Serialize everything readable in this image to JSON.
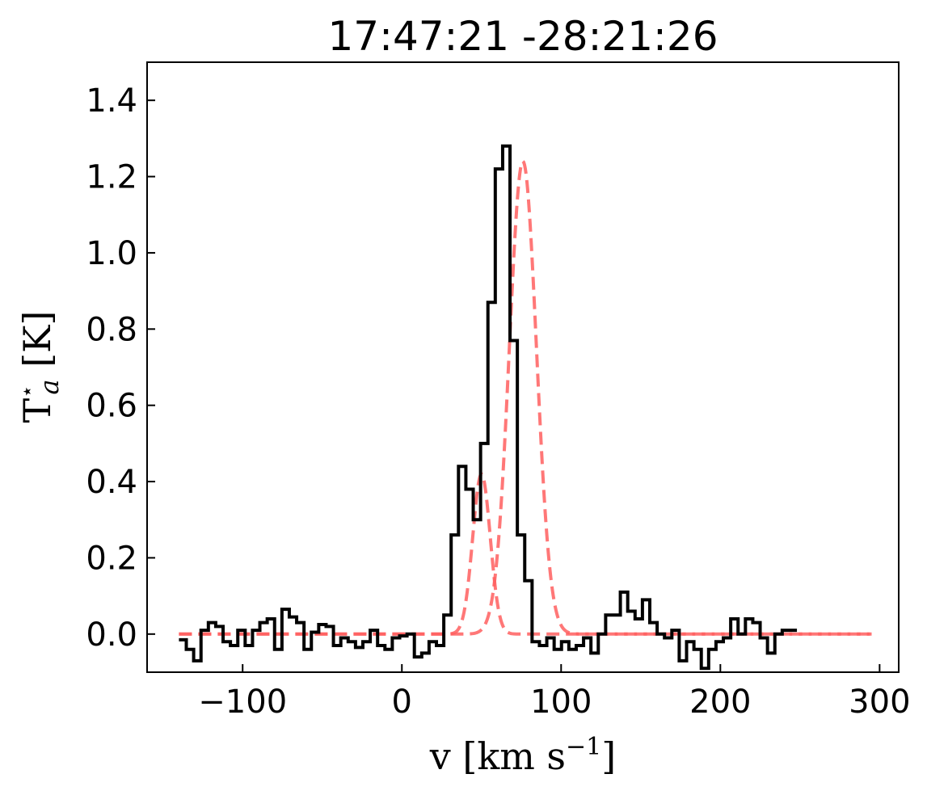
{
  "chart_data": {
    "type": "line",
    "title": "17:47:21 -28:21:26",
    "xlabel": {
      "main": "v [km s",
      "sup": "−1",
      "close": "]"
    },
    "ylabel": {
      "main": "T",
      "sup": "⋆",
      "sub": "a",
      "unit": " [K]"
    },
    "xlim": [
      -160,
      312
    ],
    "ylim": [
      -0.1,
      1.5
    ],
    "xticks": [
      -100,
      0,
      100,
      200,
      300
    ],
    "xtick_labels": [
      "−100",
      "0",
      "100",
      "200",
      "300"
    ],
    "yticks": [
      0.0,
      0.2,
      0.4,
      0.6,
      0.8,
      1.0,
      1.2,
      1.4
    ],
    "ytick_labels": [
      "0.0",
      "0.2",
      "0.4",
      "0.6",
      "0.8",
      "1.0",
      "1.2",
      "1.4"
    ],
    "grid": false,
    "series": [
      {
        "style": "step",
        "color": "#000000",
        "x_start": -140,
        "x_step": 4.62,
        "values": [
          -0.015,
          -0.04,
          -0.07,
          0.01,
          0.03,
          0.02,
          -0.02,
          -0.03,
          0.01,
          -0.03,
          0.01,
          0.03,
          0.04,
          -0.04,
          0.065,
          0.045,
          0.03,
          -0.04,
          0.005,
          0.025,
          0.02,
          -0.03,
          -0.01,
          -0.02,
          -0.035,
          -0.02,
          0.01,
          -0.03,
          -0.04,
          -0.01,
          -0.005,
          0.0,
          -0.06,
          -0.05,
          -0.02,
          -0.03,
          0.05,
          0.26,
          0.44,
          0.38,
          0.3,
          0.5,
          0.87,
          1.22,
          1.28,
          0.77,
          0.26,
          0.14,
          -0.02,
          -0.03,
          -0.01,
          -0.04,
          -0.02,
          -0.04,
          -0.03,
          -0.01,
          -0.05,
          0.0,
          0.05,
          0.05,
          0.11,
          0.06,
          0.04,
          0.09,
          0.03,
          0.0,
          -0.01,
          0.01,
          -0.07,
          -0.02,
          -0.04,
          -0.09,
          -0.04,
          -0.02,
          -0.01,
          0.04,
          0.0,
          0.04,
          0.03,
          -0.01,
          -0.05,
          0.0,
          0.01,
          0.01
        ]
      },
      {
        "style": "gaussian",
        "color": "#ff5f5f",
        "amplitude": 1.24,
        "center": 76,
        "sigma": 8.5,
        "x_range": [
          -140,
          295
        ]
      },
      {
        "style": "gaussian",
        "color": "#ff5f5f",
        "amplitude": 0.42,
        "center": 50,
        "sigma": 5.5,
        "x_range": [
          -140,
          295
        ]
      }
    ]
  }
}
